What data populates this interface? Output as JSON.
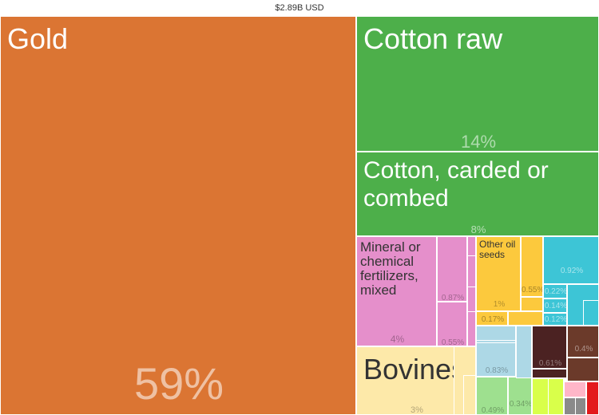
{
  "header": {
    "total_label": "$2.89B USD"
  },
  "chart_data": {
    "type": "treemap",
    "total": "$2.89B USD",
    "tiles": [
      {
        "id": "gold",
        "label": "Gold",
        "share": "59%",
        "value": 59,
        "color": "#db7533"
      },
      {
        "id": "cotton-raw",
        "label": "Cotton raw",
        "share": "14%",
        "value": 14,
        "color": "#4daf4a"
      },
      {
        "id": "cotton-carded",
        "label": "Cotton, carded or combed",
        "share": "8%",
        "value": 8,
        "color": "#4daf4a"
      },
      {
        "id": "fertilizers",
        "label": "Mineral or chemical fertilizers, mixed",
        "share": "4%",
        "value": 4,
        "color": "#e58fcb"
      },
      {
        "id": "bovines",
        "label": "Bovines",
        "share": "3%",
        "value": 3,
        "color": "#fde9a9"
      },
      {
        "id": "oil-seeds",
        "label": "Other oil seeds",
        "share": "1%",
        "value": 1,
        "color": "#fcc93d"
      },
      {
        "id": "pink-087",
        "label": "",
        "share": "0.87%",
        "value": 0.87,
        "color": "#e58fcb"
      },
      {
        "id": "pink-055",
        "label": "",
        "share": "0.55%",
        "value": 0.55,
        "color": "#e58fcb"
      },
      {
        "id": "yellow-055",
        "label": "",
        "share": "0.55%",
        "value": 0.55,
        "color": "#fcc93d"
      },
      {
        "id": "yellow-017",
        "label": "",
        "share": "0.17%",
        "value": 0.17,
        "color": "#fcc93d"
      },
      {
        "id": "cyan-092",
        "label": "",
        "share": "0.92%",
        "value": 0.92,
        "color": "#3dc5d6"
      },
      {
        "id": "cyan-022",
        "label": "",
        "share": "0.22%",
        "value": 0.22,
        "color": "#3dc5d6"
      },
      {
        "id": "cyan-014",
        "label": "",
        "share": "0.14%",
        "value": 0.14,
        "color": "#3dc5d6"
      },
      {
        "id": "cyan-012",
        "label": "",
        "share": "0.12%",
        "value": 0.12,
        "color": "#3dc5d6"
      },
      {
        "id": "lightblue-083",
        "label": "",
        "share": "0.83%",
        "value": 0.83,
        "color": "#add8e6"
      },
      {
        "id": "darkred-061",
        "label": "",
        "share": "0.61%",
        "value": 0.61,
        "color": "#4b2222"
      },
      {
        "id": "brown-04",
        "label": "",
        "share": "0.4%",
        "value": 0.4,
        "color": "#6b3a2a"
      },
      {
        "id": "green-049",
        "label": "",
        "share": "0.49%",
        "value": 0.49,
        "color": "#9ee08f"
      },
      {
        "id": "green-034",
        "label": "",
        "share": "0.34%",
        "value": 0.34,
        "color": "#9ee08f"
      },
      {
        "id": "lime",
        "label": "",
        "share": "",
        "value": 0.2,
        "color": "#d9ff4a"
      },
      {
        "id": "gray",
        "label": "",
        "share": "",
        "value": 0.15,
        "color": "#8a8a8a"
      },
      {
        "id": "pink-small",
        "label": "",
        "share": "",
        "value": 0.1,
        "color": "#ffb6c8"
      },
      {
        "id": "red-small",
        "label": "",
        "share": "",
        "value": 0.05,
        "color": "#e31a1c"
      }
    ]
  }
}
